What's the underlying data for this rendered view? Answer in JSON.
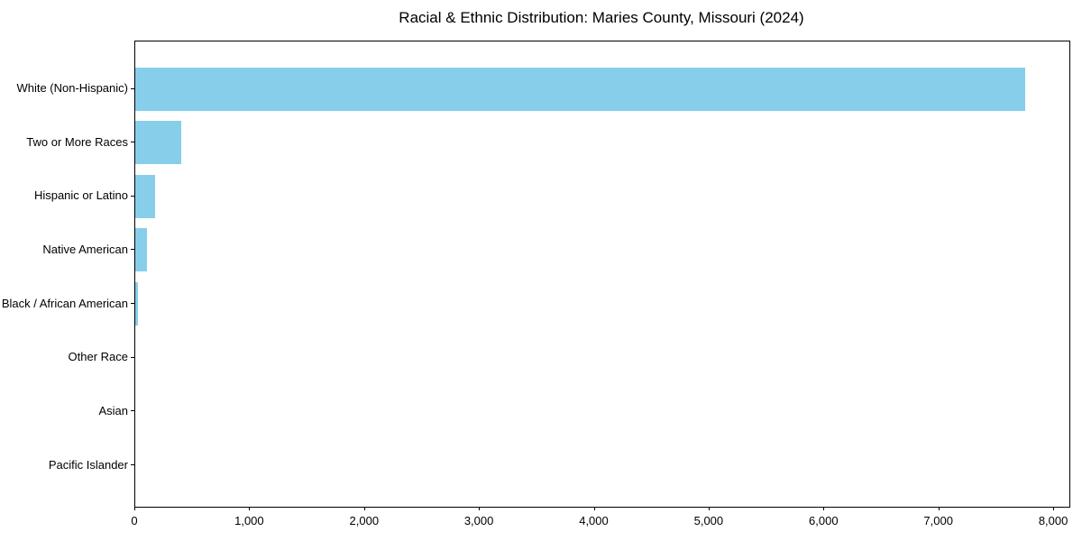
{
  "figure": {
    "background_color": "#ffffff",
    "title": "Racial & Ethnic Distribution: Maries County, Missouri (2024)"
  },
  "chart_data": {
    "type": "bar",
    "orientation": "horizontal",
    "title": "Racial & Ethnic Distribution: Maries County, Missouri (2024)",
    "xlabel": "",
    "ylabel": "",
    "categories": [
      "White (Non-Hispanic)",
      "Two or More Races",
      "Hispanic or Latino",
      "Native American",
      "Black / African American",
      "Other Race",
      "Asian",
      "Pacific Islander"
    ],
    "values": [
      7750,
      400,
      175,
      100,
      25,
      0,
      0,
      0
    ],
    "xlim": [
      0,
      8133
    ],
    "x_ticks": [
      {
        "value": 0,
        "label": "0"
      },
      {
        "value": 1000,
        "label": "1,000"
      },
      {
        "value": 2000,
        "label": "2,000"
      },
      {
        "value": 3000,
        "label": "3,000"
      },
      {
        "value": 4000,
        "label": "4,000"
      },
      {
        "value": 5000,
        "label": "5,000"
      },
      {
        "value": 6000,
        "label": "6,000"
      },
      {
        "value": 7000,
        "label": "7,000"
      },
      {
        "value": 8000,
        "label": "8,000"
      }
    ],
    "bar_color": "#87CEEB",
    "axis_color": "#000000",
    "text_color": "#000000",
    "grid": false,
    "legend": null
  }
}
